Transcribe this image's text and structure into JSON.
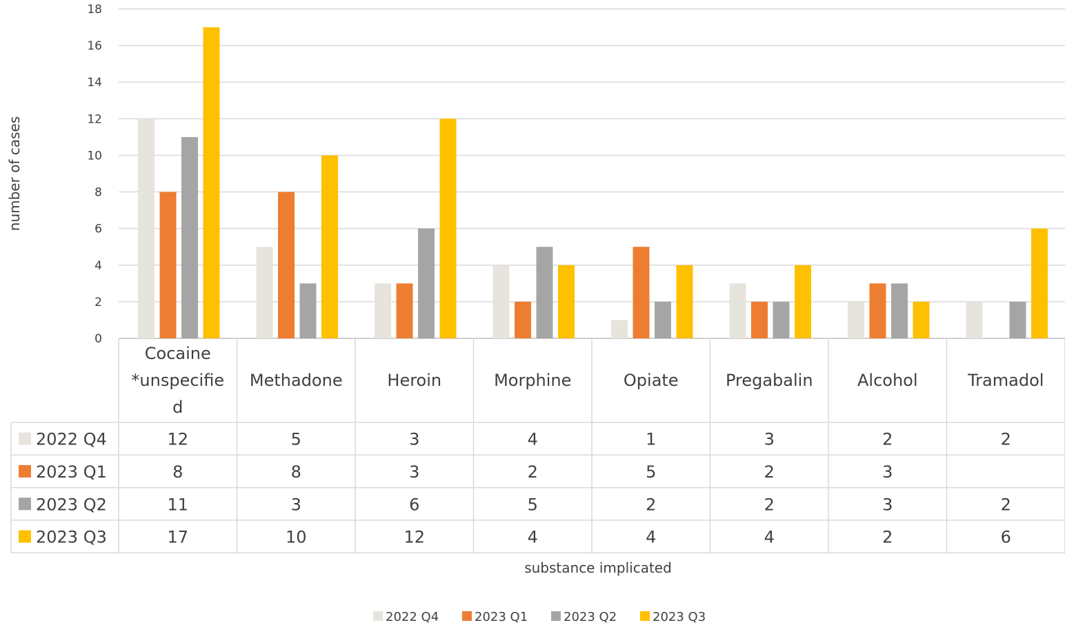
{
  "chart_data": {
    "type": "bar",
    "xlabel": "substance implicated",
    "ylabel": "number of cases",
    "ylim": [
      0,
      18
    ],
    "ytick_step": 2,
    "grid": true,
    "legend_position": "bottom",
    "data_table": true,
    "categories": [
      [
        "Cocaine",
        "*unspecifie",
        "d"
      ],
      [
        "Methadone"
      ],
      [
        "Heroin"
      ],
      [
        "Morphine"
      ],
      [
        "Opiate"
      ],
      [
        "Pregabalin"
      ],
      [
        "Alcohol"
      ],
      [
        "Tramadol"
      ]
    ],
    "series": [
      {
        "name": "2022 Q4",
        "color": "#e7e4de",
        "values": [
          12,
          5,
          3,
          4,
          1,
          3,
          2,
          2
        ]
      },
      {
        "name": "2023 Q1",
        "color": "#ed7d31",
        "values": [
          8,
          8,
          3,
          2,
          5,
          2,
          3,
          null
        ]
      },
      {
        "name": "2023 Q2",
        "color": "#a5a5a5",
        "values": [
          11,
          3,
          6,
          5,
          2,
          2,
          3,
          2
        ]
      },
      {
        "name": "2023 Q3",
        "color": "#ffc000",
        "values": [
          17,
          10,
          12,
          4,
          4,
          4,
          2,
          6
        ]
      }
    ]
  }
}
